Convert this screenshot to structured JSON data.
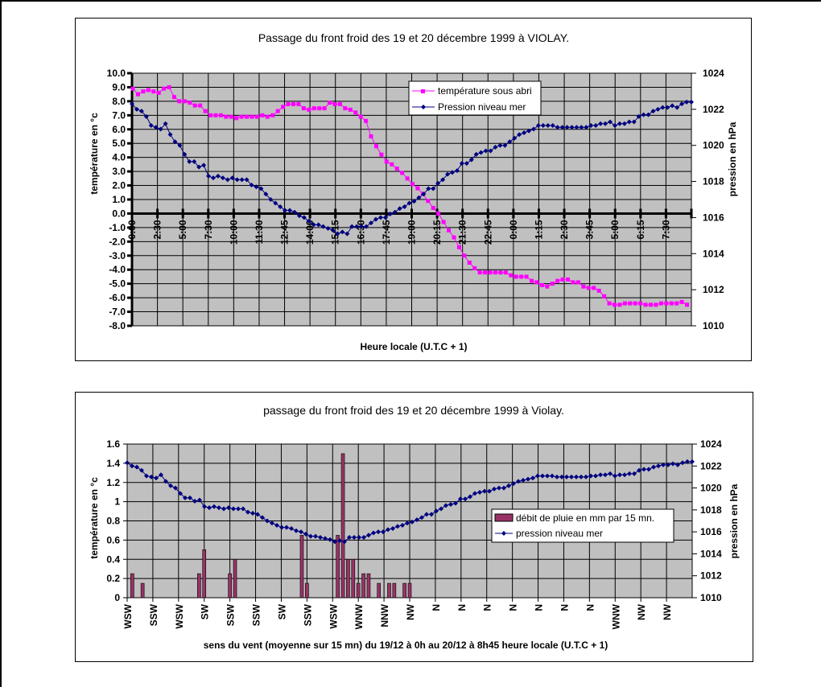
{
  "chart_data": [
    {
      "type": "line",
      "title": "Passage du front froid des 19 et 20 décembre 1999 à VIOLAY.",
      "xlabel": "Heure locale (U.T.C + 1)",
      "ylabel": "température en °c",
      "y2label": "pression en hPa",
      "ylim": [
        -8,
        10
      ],
      "y2lim": [
        1010,
        1024
      ],
      "yticks": [
        "10.0",
        "9.0",
        "8.0",
        "7.0",
        "6.0",
        "5.0",
        "4.0",
        "3.0",
        "2.0",
        "1.0",
        "0.0",
        "-1.0",
        "-2.0",
        "-3.0",
        "-4.0",
        "-5.0",
        "-6.0",
        "-7.0",
        "-8.0"
      ],
      "y2ticks": [
        "1024",
        "1022",
        "1020",
        "1018",
        "1016",
        "1014",
        "1012",
        "1010"
      ],
      "xticks": [
        "0:00",
        "2:30",
        "5:00",
        "7:30",
        "10:00",
        "11:30",
        "12:45",
        "14:00",
        "15:15",
        "16:30",
        "17:45",
        "19:00",
        "20:15",
        "21:30",
        "22:45",
        "0:00",
        "1:15",
        "2:30",
        "3:45",
        "5:00",
        "6:15",
        "7:30"
      ],
      "grid": true,
      "legend": "top-right",
      "series": [
        {
          "name": "température sous abri",
          "axis": "left",
          "color": "#ff00ff",
          "marker": "square",
          "values": [
            8.9,
            8.5,
            8.7,
            8.8,
            8.7,
            8.6,
            8.9,
            9.0,
            8.3,
            8.0,
            8.0,
            7.9,
            7.7,
            7.7,
            7.3,
            7.0,
            7.0,
            7.0,
            6.9,
            6.9,
            6.8,
            6.9,
            6.9,
            6.9,
            6.9,
            7.0,
            6.9,
            7.0,
            7.3,
            7.6,
            7.8,
            7.8,
            7.8,
            7.5,
            7.4,
            7.5,
            7.5,
            7.5,
            7.9,
            7.8,
            7.8,
            7.5,
            7.4,
            7.2,
            6.9,
            6.6,
            5.5,
            4.8,
            4.2,
            3.7,
            3.5,
            3.2,
            2.9,
            2.5,
            2.1,
            1.8,
            1.4,
            0.9,
            0.4,
            0.0,
            -0.6,
            -1.2,
            -1.7,
            -2.4,
            -3.0,
            -3.5,
            -3.9,
            -4.2,
            -4.2,
            -4.2,
            -4.2,
            -4.2,
            -4.2,
            -4.4,
            -4.5,
            -4.5,
            -4.5,
            -4.8,
            -4.9,
            -5.1,
            -5.2,
            -5.0,
            -4.8,
            -4.7,
            -4.7,
            -4.9,
            -4.9,
            -5.2,
            -5.3,
            -5.3,
            -5.5,
            -5.9,
            -6.4,
            -6.5,
            -6.5,
            -6.4,
            -6.4,
            -6.4,
            -6.4,
            -6.5,
            -6.5,
            -6.5,
            -6.4,
            -6.4,
            -6.4,
            -6.4,
            -6.3,
            -6.5
          ]
        },
        {
          "name": "Pression niveau mer",
          "axis": "right",
          "color": "#000080",
          "marker": "diamond",
          "values": [
            1022.3,
            1022.0,
            1021.9,
            1021.6,
            1021.1,
            1021.0,
            1020.9,
            1021.2,
            1020.6,
            1020.2,
            1020.0,
            1019.5,
            1019.1,
            1019.1,
            1018.8,
            1018.9,
            1018.3,
            1018.2,
            1018.3,
            1018.2,
            1018.1,
            1018.2,
            1018.1,
            1018.1,
            1018.1,
            1017.8,
            1017.7,
            1017.6,
            1017.3,
            1017.0,
            1016.8,
            1016.6,
            1016.4,
            1016.4,
            1016.3,
            1016.1,
            1016.0,
            1015.8,
            1015.6,
            1015.6,
            1015.5,
            1015.4,
            1015.3,
            1015.1,
            1015.2,
            1015.1,
            1015.5,
            1015.5,
            1015.5,
            1015.5,
            1015.7,
            1015.9,
            1016.0,
            1016.0,
            1016.2,
            1016.3,
            1016.5,
            1016.6,
            1016.8,
            1016.9,
            1017.1,
            1017.3,
            1017.6,
            1017.6,
            1017.9,
            1018.1,
            1018.4,
            1018.5,
            1018.6,
            1019.0,
            1019.0,
            1019.2,
            1019.5,
            1019.6,
            1019.7,
            1019.7,
            1019.9,
            1020.0,
            1020.0,
            1020.2,
            1020.4,
            1020.6,
            1020.7,
            1020.8,
            1020.9,
            1021.1,
            1021.1,
            1021.1,
            1021.1,
            1021.0,
            1021.0,
            1021.0,
            1021.0,
            1021.0,
            1021.0,
            1021.0,
            1021.1,
            1021.1,
            1021.2,
            1021.2,
            1021.3,
            1021.1,
            1021.2,
            1021.2,
            1021.3,
            1021.3,
            1021.6,
            1021.7,
            1021.7,
            1021.9,
            1022.0,
            1022.1,
            1022.1,
            1022.2,
            1022.1,
            1022.3,
            1022.4,
            1022.4
          ]
        }
      ]
    },
    {
      "type": "bar",
      "title": "passage du front froid des 19 et 20 décembre 1999 à Violay.",
      "xlabel": "sens du vent (moyenne sur 15 mn) du 19/12 à 0h au 20/12 à 8h45 heure locale (U.T.C + 1)",
      "ylabel": "température en °c",
      "y2label": "pression en hPa",
      "ylim": [
        0,
        1.6
      ],
      "y2lim": [
        1010,
        1024
      ],
      "yticks": [
        "1.6",
        "1.4",
        "1.2",
        "1",
        "0.8",
        "0.6",
        "0.4",
        "0.2",
        "0"
      ],
      "y2ticks": [
        "1024",
        "1022",
        "1020",
        "1018",
        "1016",
        "1014",
        "1012",
        "1010"
      ],
      "xticks": [
        "WSW",
        "SSW",
        "WSW",
        "SW",
        "SSW",
        "SSW",
        "SW",
        "SSW",
        "WSW",
        "WNW",
        "NNW",
        "NW",
        "N",
        "N",
        "N",
        "N",
        "N",
        "N",
        "N",
        "WNW",
        "NW",
        "NW"
      ],
      "grid": true,
      "legend": "right",
      "series": [
        {
          "name": "débit de pluie en mm par 15 mn.",
          "axis": "left",
          "kind": "bar",
          "color": "#993366",
          "points": [
            {
              "i": 1,
              "v": 0.25
            },
            {
              "i": 3,
              "v": 0.15
            },
            {
              "i": 14,
              "v": 0.25
            },
            {
              "i": 15,
              "v": 0.5
            },
            {
              "i": 20,
              "v": 0.25
            },
            {
              "i": 21,
              "v": 0.4
            },
            {
              "i": 34,
              "v": 0.65
            },
            {
              "i": 35,
              "v": 0.15
            },
            {
              "i": 41,
              "v": 0.65
            },
            {
              "i": 42,
              "v": 1.5
            },
            {
              "i": 43,
              "v": 0.4
            },
            {
              "i": 44,
              "v": 0.4
            },
            {
              "i": 45,
              "v": 0.15
            },
            {
              "i": 46,
              "v": 0.25
            },
            {
              "i": 47,
              "v": 0.25
            },
            {
              "i": 49,
              "v": 0.15
            },
            {
              "i": 51,
              "v": 0.15
            },
            {
              "i": 52,
              "v": 0.15
            },
            {
              "i": 54,
              "v": 0.15
            },
            {
              "i": 55,
              "v": 0.15
            }
          ]
        },
        {
          "name": "pression niveau mer",
          "axis": "right",
          "kind": "line",
          "color": "#000080",
          "marker": "diamond",
          "values": [
            1022.3,
            1022.0,
            1021.9,
            1021.6,
            1021.1,
            1021.0,
            1020.9,
            1021.2,
            1020.6,
            1020.2,
            1020.0,
            1019.5,
            1019.1,
            1019.1,
            1018.8,
            1018.9,
            1018.3,
            1018.2,
            1018.3,
            1018.2,
            1018.1,
            1018.2,
            1018.1,
            1018.1,
            1018.1,
            1017.8,
            1017.7,
            1017.6,
            1017.3,
            1017.0,
            1016.8,
            1016.6,
            1016.4,
            1016.4,
            1016.3,
            1016.1,
            1016.0,
            1015.8,
            1015.6,
            1015.6,
            1015.5,
            1015.4,
            1015.3,
            1015.1,
            1015.2,
            1015.1,
            1015.5,
            1015.5,
            1015.5,
            1015.5,
            1015.7,
            1015.9,
            1016.0,
            1016.0,
            1016.2,
            1016.3,
            1016.5,
            1016.6,
            1016.8,
            1016.9,
            1017.1,
            1017.3,
            1017.6,
            1017.6,
            1017.9,
            1018.1,
            1018.4,
            1018.5,
            1018.6,
            1019.0,
            1019.0,
            1019.2,
            1019.5,
            1019.6,
            1019.7,
            1019.7,
            1019.9,
            1020.0,
            1020.0,
            1020.2,
            1020.4,
            1020.6,
            1020.7,
            1020.8,
            1020.9,
            1021.1,
            1021.1,
            1021.1,
            1021.1,
            1021.0,
            1021.0,
            1021.0,
            1021.0,
            1021.0,
            1021.0,
            1021.0,
            1021.1,
            1021.1,
            1021.2,
            1021.2,
            1021.3,
            1021.1,
            1021.2,
            1021.2,
            1021.3,
            1021.3,
            1021.6,
            1021.7,
            1021.7,
            1021.9,
            1022.0,
            1022.1,
            1022.1,
            1022.2,
            1022.1,
            1022.3,
            1022.4,
            1022.4
          ]
        }
      ]
    }
  ]
}
